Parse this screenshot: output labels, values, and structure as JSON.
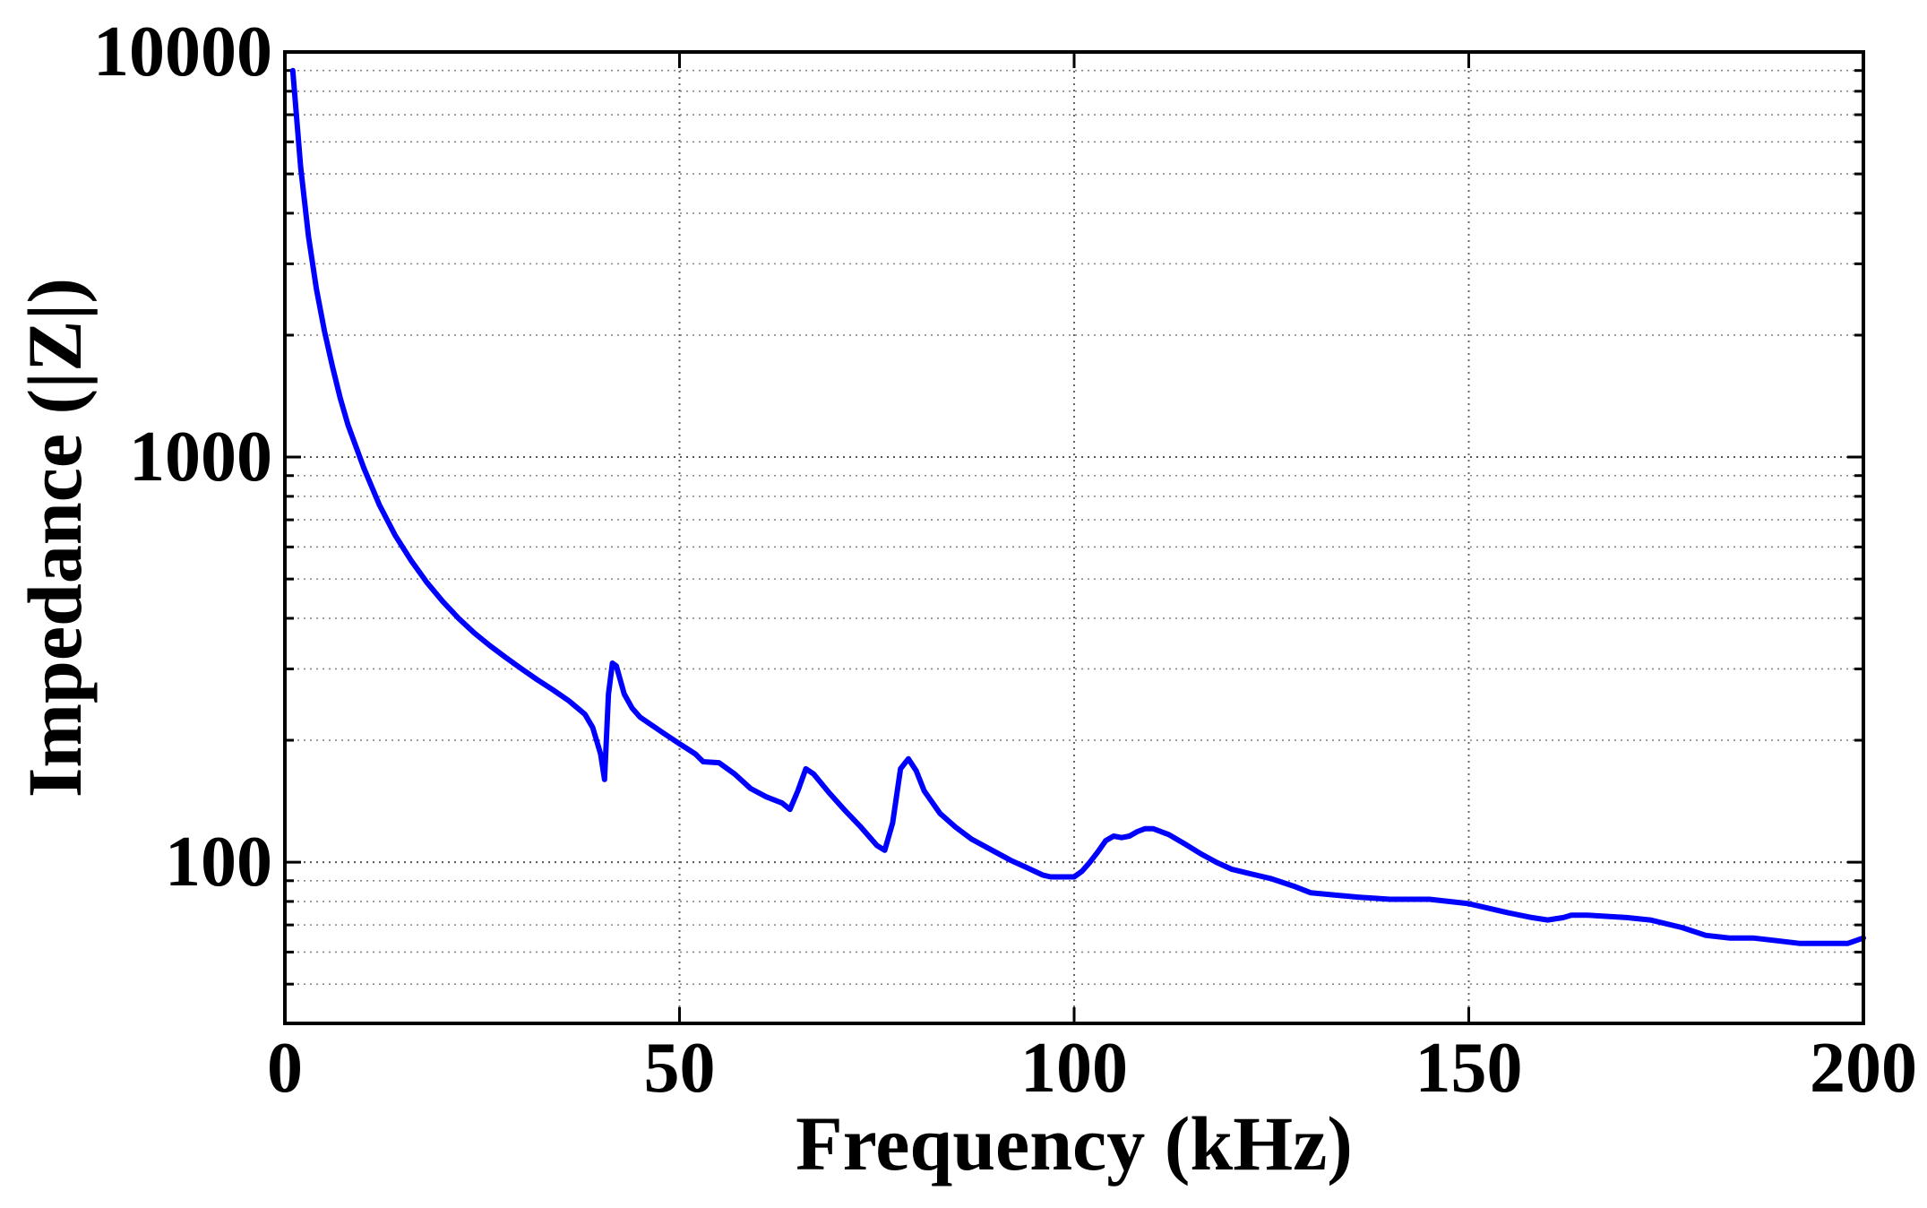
{
  "chart_data": {
    "type": "line",
    "title": "",
    "xlabel": "Frequency (kHz)",
    "ylabel": "Impedance (|Z|)",
    "xlim": [
      0,
      200
    ],
    "ylim": [
      40,
      10000
    ],
    "yscale": "log",
    "grid": true,
    "grid_style": "dotted",
    "x_ticks": [
      0,
      50,
      100,
      150,
      200
    ],
    "x_tick_labels": [
      "0",
      "50",
      "100",
      "150",
      "200"
    ],
    "y_ticks": [
      100,
      1000,
      10000
    ],
    "y_tick_labels": [
      "100",
      "1000",
      "10000"
    ],
    "line_color": "#0000ff",
    "series": [
      {
        "x": [
          1,
          2,
          3,
          4,
          5,
          6,
          7,
          8,
          10,
          12,
          14,
          16,
          18,
          20,
          22,
          24,
          26,
          28,
          30,
          32,
          34,
          36,
          38,
          39,
          40,
          40.5,
          41,
          41.5,
          42,
          43,
          44,
          45,
          48,
          50,
          52,
          53,
          55,
          57,
          59,
          61,
          63,
          64,
          65,
          66,
          67,
          69,
          71,
          73,
          75,
          76,
          77,
          78,
          79,
          80,
          81,
          83,
          85,
          87,
          90,
          92,
          94,
          96,
          97,
          98,
          99,
          100,
          101,
          102,
          103,
          104,
          105,
          106,
          107,
          108,
          109,
          110,
          112,
          114,
          116,
          118,
          120,
          122,
          125,
          128,
          130,
          133,
          136,
          140,
          145,
          150,
          155,
          158,
          160,
          162,
          163,
          165,
          170,
          173,
          177,
          180,
          183,
          186,
          189,
          192,
          195,
          198,
          200
        ],
        "y": [
          9000,
          5200,
          3500,
          2600,
          2050,
          1680,
          1400,
          1200,
          940,
          760,
          640,
          555,
          490,
          440,
          400,
          368,
          342,
          320,
          300,
          282,
          266,
          250,
          232,
          215,
          185,
          160,
          260,
          310,
          305,
          260,
          240,
          228,
          208,
          196,
          185,
          177,
          176,
          165,
          152,
          145,
          140,
          135,
          150,
          170,
          165,
          148,
          134,
          122,
          110,
          107,
          125,
          170,
          180,
          168,
          150,
          132,
          122,
          114,
          106,
          101,
          97,
          93,
          92,
          92,
          92,
          92,
          95,
          100,
          106,
          113,
          116,
          115,
          116,
          119,
          121,
          121,
          117,
          111,
          105,
          100,
          96,
          94,
          91,
          87,
          84,
          83,
          82,
          81,
          81,
          79,
          75,
          73,
          72,
          73,
          74,
          74,
          73,
          72,
          69,
          66,
          65,
          65,
          64,
          63,
          63,
          63,
          65
        ]
      }
    ]
  }
}
